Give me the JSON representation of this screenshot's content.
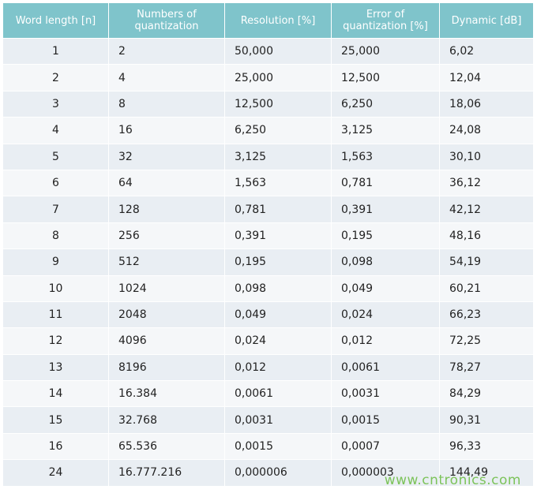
{
  "table": {
    "header": [
      "Word length [n]",
      "Numbers of quantization",
      "Resolution [%]",
      "Error of quantization [%]",
      "Dynamic [dB]"
    ],
    "rows": [
      [
        "1",
        "2",
        "50,000",
        "25,000",
        "6,02"
      ],
      [
        "2",
        "4",
        "25,000",
        "12,500",
        "12,04"
      ],
      [
        "3",
        "8",
        "12,500",
        "6,250",
        "18,06"
      ],
      [
        "4",
        "16",
        "6,250",
        "3,125",
        "24,08"
      ],
      [
        "5",
        "32",
        "3,125",
        "1,563",
        "30,10"
      ],
      [
        "6",
        "64",
        "1,563",
        "0,781",
        "36,12"
      ],
      [
        "7",
        "128",
        "0,781",
        "0,391",
        "42,12"
      ],
      [
        "8",
        "256",
        "0,391",
        "0,195",
        "48,16"
      ],
      [
        "9",
        "512",
        "0,195",
        "0,098",
        "54,19"
      ],
      [
        "10",
        "1024",
        "0,098",
        "0,049",
        "60,21"
      ],
      [
        "11",
        "2048",
        "0,049",
        "0,024",
        "66,23"
      ],
      [
        "12",
        "4096",
        "0,024",
        "0,012",
        "72,25"
      ],
      [
        "13",
        "8196",
        "0,012",
        "0,0061",
        "78,27"
      ],
      [
        "14",
        "16.384",
        "0,0061",
        "0,0031",
        "84,29"
      ],
      [
        "15",
        "32.768",
        "0,0031",
        "0,0015",
        "90,31"
      ],
      [
        "16",
        "65.536",
        "0,0015",
        "0,0007",
        "96,33"
      ],
      [
        "24",
        "16.777.216",
        "0,000006",
        "0,000003",
        "144,49"
      ]
    ]
  },
  "watermark": "www.cntronics.com"
}
